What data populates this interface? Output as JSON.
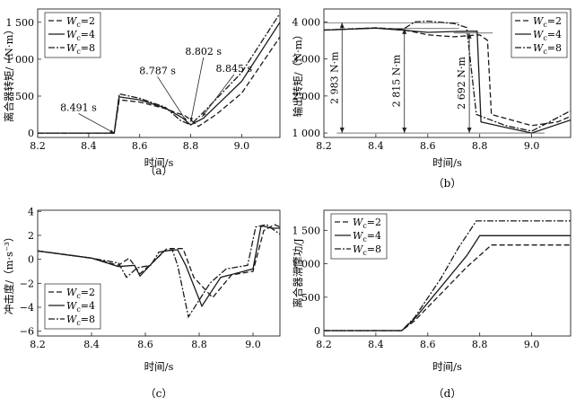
{
  "chart_data": [
    {
      "panel": "a",
      "type": "line",
      "caption": "（a）",
      "xlabel": "时间/s",
      "ylabel": "离合器转矩/（N·m）",
      "xlim": [
        8.2,
        9.15
      ],
      "ylim": [
        -60,
        1680
      ],
      "xticks": [
        "8.2",
        "8.4",
        "8.6",
        "8.8",
        "9.0"
      ],
      "xtick_values": [
        8.2,
        8.4,
        8.6,
        8.8,
        9.0
      ],
      "yticks": [
        "0",
        "500",
        "1 000",
        "1 500"
      ],
      "ytick_values": [
        0,
        500,
        1000,
        1500
      ],
      "legend": {
        "position": "top-left",
        "entries": [
          "W_c=2",
          "W_c=4",
          "W_c=8"
        ]
      },
      "series": [
        {
          "name": "W_c=2",
          "dash": "6,3",
          "points": [
            [
              8.2,
              0
            ],
            [
              8.5,
              0
            ],
            [
              8.52,
              450
            ],
            [
              8.6,
              420
            ],
            [
              8.7,
              330
            ],
            [
              8.78,
              230
            ],
            [
              8.8,
              180
            ],
            [
              8.83,
              90
            ],
            [
              8.9,
              250
            ],
            [
              9.0,
              540
            ],
            [
              9.15,
              1300
            ]
          ]
        },
        {
          "name": "W_c=4",
          "dash": "none",
          "points": [
            [
              8.2,
              0
            ],
            [
              8.5,
              0
            ],
            [
              8.52,
              490
            ],
            [
              8.6,
              450
            ],
            [
              8.7,
              340
            ],
            [
              8.77,
              200
            ],
            [
              8.8,
              110
            ],
            [
              8.85,
              200
            ],
            [
              9.0,
              700
            ],
            [
              9.15,
              1500
            ]
          ]
        },
        {
          "name": "W_c=8",
          "dash": "7,2,2,2",
          "points": [
            [
              8.2,
              0
            ],
            [
              8.5,
              0
            ],
            [
              8.52,
              530
            ],
            [
              8.6,
              470
            ],
            [
              8.7,
              350
            ],
            [
              8.76,
              170
            ],
            [
              8.8,
              110
            ],
            [
              8.85,
              280
            ],
            [
              9.0,
              820
            ],
            [
              9.15,
              1620
            ]
          ]
        }
      ],
      "annotations": [
        {
          "text": "8.491 s",
          "x": 8.36,
          "y": 300,
          "tx": 8.5,
          "ty": 0
        },
        {
          "text": "8.787 s",
          "x": 8.67,
          "y": 800,
          "tx": 8.785,
          "ty": 150
        },
        {
          "text": "8.802 s",
          "x": 8.85,
          "y": 1060,
          "tx": 8.8,
          "ty": 150
        },
        {
          "text": "8.845 s",
          "x": 8.97,
          "y": 830,
          "tx": 8.845,
          "ty": 220
        }
      ]
    },
    {
      "panel": "b",
      "type": "line",
      "caption": "（b）",
      "xlabel": "时间/s",
      "ylabel": "输出转矩/（N·m）",
      "xlim": [
        8.2,
        9.15
      ],
      "ylim": [
        880,
        4350
      ],
      "xticks": [
        "8.2",
        "8.4",
        "8.6",
        "8.8",
        "9.0"
      ],
      "xtick_values": [
        8.2,
        8.4,
        8.6,
        8.8,
        9.0
      ],
      "yticks": [
        "1 000",
        "2 000",
        "3 000",
        "4 000"
      ],
      "ytick_values": [
        1000,
        2000,
        3000,
        4000
      ],
      "legend": {
        "position": "top-right",
        "entries": [
          "W_c=2",
          "W_c=4",
          "W_c=8"
        ]
      },
      "series": [
        {
          "name": "W_c=2",
          "dash": "6,3",
          "points": [
            [
              8.2,
              3780
            ],
            [
              8.4,
              3840
            ],
            [
              8.5,
              3800
            ],
            [
              8.6,
              3650
            ],
            [
              8.7,
              3600
            ],
            [
              8.8,
              3650
            ],
            [
              8.83,
              3500
            ],
            [
              8.845,
              1500
            ],
            [
              9.0,
              1200
            ],
            [
              9.1,
              1300
            ],
            [
              9.15,
              1450
            ]
          ]
        },
        {
          "name": "W_c=4",
          "dash": "none",
          "points": [
            [
              8.2,
              3780
            ],
            [
              8.4,
              3830
            ],
            [
              8.5,
              3780
            ],
            [
              8.6,
              3720
            ],
            [
              8.7,
              3740
            ],
            [
              8.79,
              3750
            ],
            [
              8.805,
              1300
            ],
            [
              8.9,
              1150
            ],
            [
              9.0,
              1000
            ],
            [
              9.15,
              1350
            ]
          ]
        },
        {
          "name": "W_c=8",
          "dash": "7,2,2,2",
          "points": [
            [
              8.2,
              3780
            ],
            [
              8.4,
              3840
            ],
            [
              8.5,
              3780
            ],
            [
              8.55,
              4000
            ],
            [
              8.6,
              4020
            ],
            [
              8.7,
              3960
            ],
            [
              8.75,
              3850
            ],
            [
              8.787,
              1500
            ],
            [
              8.9,
              1200
            ],
            [
              9.0,
              1050
            ],
            [
              9.15,
              1600
            ]
          ]
        }
      ],
      "annotations": [
        {
          "text": "2 983 N·m",
          "x": 8.27,
          "y_top": 3980,
          "y_bottom": 1000
        },
        {
          "text": "2 815 N·m",
          "x": 8.51,
          "y_top": 3820,
          "y_bottom": 1000
        },
        {
          "text": "2 692 N·m",
          "x": 8.76,
          "y_top": 3700,
          "y_bottom": 1000
        }
      ]
    },
    {
      "panel": "c",
      "type": "line",
      "caption": "（c）",
      "xlabel": "时间/s",
      "ylabel": "冲击度/（m·s⁻³）",
      "xlim": [
        8.2,
        9.1
      ],
      "ylim": [
        -6.4,
        4.1
      ],
      "xticks": [
        "8.2",
        "8.4",
        "8.6",
        "8.8",
        "9.0"
      ],
      "xtick_values": [
        8.2,
        8.4,
        8.6,
        8.8,
        9.0
      ],
      "yticks": [
        "4",
        "2",
        "0",
        "−2",
        "−4",
        "−6"
      ],
      "ytick_values": [
        4,
        2,
        0,
        -2,
        -4,
        -6
      ],
      "legend": {
        "position": "bottom-left",
        "entries": [
          "W_c=2",
          "W_c=4",
          "W_c=8"
        ]
      },
      "series": [
        {
          "name": "W_c=2",
          "dash": "6,3",
          "points": [
            [
              8.2,
              0.7
            ],
            [
              8.3,
              0.4
            ],
            [
              8.4,
              0.1
            ],
            [
              8.5,
              -0.5
            ],
            [
              8.54,
              0.1
            ],
            [
              8.58,
              -1.2
            ],
            [
              8.64,
              0
            ],
            [
              8.68,
              0.9
            ],
            [
              8.74,
              0.9
            ],
            [
              8.78,
              -1.5
            ],
            [
              8.85,
              -3.2
            ],
            [
              8.92,
              -1.3
            ],
            [
              9.0,
              -1.0
            ],
            [
              9.04,
              2.4
            ],
            [
              9.08,
              2.9
            ],
            [
              9.1,
              2.7
            ]
          ]
        },
        {
          "name": "W_c=4",
          "dash": "none",
          "points": [
            [
              8.2,
              0.7
            ],
            [
              8.3,
              0.4
            ],
            [
              8.4,
              0.1
            ],
            [
              8.5,
              -0.6
            ],
            [
              8.56,
              -0.5
            ],
            [
              8.58,
              -1.4
            ],
            [
              8.63,
              -0.2
            ],
            [
              8.67,
              0.7
            ],
            [
              8.72,
              0.8
            ],
            [
              8.75,
              -0.5
            ],
            [
              8.81,
              -3.9
            ],
            [
              8.88,
              -1.5
            ],
            [
              9.0,
              -0.8
            ],
            [
              9.03,
              2.8
            ],
            [
              9.07,
              2.6
            ],
            [
              9.1,
              2.6
            ]
          ]
        },
        {
          "name": "W_c=8",
          "dash": "7,2,2,2",
          "points": [
            [
              8.2,
              0.7
            ],
            [
              8.3,
              0.4
            ],
            [
              8.4,
              0.1
            ],
            [
              8.5,
              -0.3
            ],
            [
              8.53,
              -1.5
            ],
            [
              8.57,
              -0.7
            ],
            [
              8.62,
              -0.5
            ],
            [
              8.65,
              0.6
            ],
            [
              8.7,
              0.8
            ],
            [
              8.72,
              -0.5
            ],
            [
              8.76,
              -4.8
            ],
            [
              8.84,
              -2.0
            ],
            [
              8.9,
              -0.8
            ],
            [
              8.98,
              -0.5
            ],
            [
              9.01,
              2.7
            ],
            [
              9.05,
              2.9
            ],
            [
              9.1,
              2.1
            ]
          ]
        }
      ]
    },
    {
      "panel": "d",
      "type": "line",
      "caption": "（d）",
      "xlabel": "时间/s",
      "ylabel": "离合器滑摩功/J",
      "xlim": [
        8.2,
        9.15
      ],
      "ylim": [
        -80,
        1800
      ],
      "xticks": [
        "8.2",
        "8.4",
        "8.6",
        "8.8",
        "9.0"
      ],
      "xtick_values": [
        8.2,
        8.4,
        8.6,
        8.8,
        9.0
      ],
      "yticks": [
        "0",
        "500",
        "1 000",
        "1 500"
      ],
      "ytick_values": [
        0,
        500,
        1000,
        1500
      ],
      "legend": {
        "position": "top-left",
        "entries": [
          "W_c=2",
          "W_c=4",
          "W_c=8"
        ]
      },
      "series": [
        {
          "name": "W_c=2",
          "dash": "6,3",
          "points": [
            [
              8.2,
              0
            ],
            [
              8.5,
              0
            ],
            [
              8.55,
              150
            ],
            [
              8.65,
              550
            ],
            [
              8.75,
              950
            ],
            [
              8.845,
              1280
            ],
            [
              9.15,
              1280
            ]
          ]
        },
        {
          "name": "W_c=4",
          "dash": "none",
          "points": [
            [
              8.2,
              0
            ],
            [
              8.5,
              0
            ],
            [
              8.55,
              180
            ],
            [
              8.65,
              650
            ],
            [
              8.75,
              1120
            ],
            [
              8.8,
              1420
            ],
            [
              9.15,
              1420
            ]
          ]
        },
        {
          "name": "W_c=8",
          "dash": "7,2,2,2",
          "points": [
            [
              8.2,
              0
            ],
            [
              8.5,
              0
            ],
            [
              8.55,
              200
            ],
            [
              8.65,
              780
            ],
            [
              8.72,
              1250
            ],
            [
              8.787,
              1640
            ],
            [
              9.15,
              1640
            ]
          ]
        }
      ]
    }
  ]
}
